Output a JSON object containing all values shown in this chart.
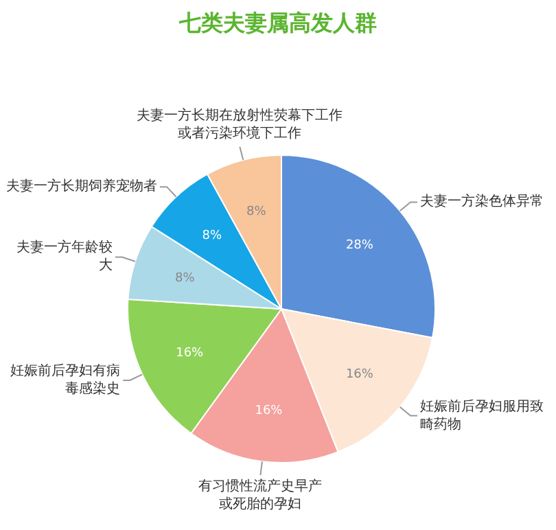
{
  "chart_data": {
    "type": "pie",
    "title": "七类夫妻属高发人群",
    "categories": [
      "夫妻一方染色体异常",
      "妊娠前后孕妇服用致畸药物",
      "有习惯性流产史早产或死胎的孕妇",
      "妊娠前后孕妇有病毒感染史",
      "夫妻一方年龄较大",
      "夫妻一方长期饲养宠物者",
      "夫妻一方长期在放射性荧幕下工作或者污染环境下工作"
    ],
    "values": [
      28,
      16,
      16,
      16,
      8,
      8,
      8
    ],
    "colors": [
      "#5b8fd8",
      "#fde6d4",
      "#f5a19d",
      "#8ed157",
      "#acd9e8",
      "#16a5e6",
      "#f9c59b"
    ],
    "value_labels": [
      "28%",
      "16%",
      "16%",
      "16%",
      "8%",
      "8%",
      "8%"
    ]
  }
}
